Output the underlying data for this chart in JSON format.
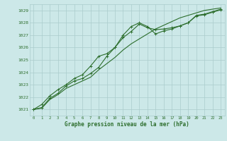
{
  "title": "Graphe pression niveau de la mer (hPa)",
  "background_color": "#cce8e8",
  "grid_color": "#aacccc",
  "line_color": "#2d6e2d",
  "xlim": [
    -0.5,
    23.5
  ],
  "ylim": [
    1020.5,
    1029.5
  ],
  "yticks": [
    1021,
    1022,
    1023,
    1024,
    1025,
    1026,
    1027,
    1028,
    1029
  ],
  "xticks": [
    0,
    1,
    2,
    3,
    4,
    5,
    6,
    7,
    8,
    9,
    10,
    11,
    12,
    13,
    14,
    15,
    16,
    17,
    18,
    19,
    20,
    21,
    22,
    23
  ],
  "series": [
    {
      "x": [
        0,
        1,
        2,
        3,
        4,
        5,
        6,
        7,
        8,
        9,
        10,
        11,
        12,
        13,
        14,
        15,
        16,
        17,
        18,
        19,
        20,
        21,
        22,
        23
      ],
      "y": [
        1021.0,
        1021.1,
        1021.8,
        1022.2,
        1022.7,
        1023.0,
        1023.3,
        1023.6,
        1024.2,
        1024.7,
        1025.2,
        1025.8,
        1026.3,
        1026.7,
        1027.1,
        1027.5,
        1027.8,
        1028.1,
        1028.4,
        1028.6,
        1028.8,
        1029.0,
        1029.1,
        1029.2
      ],
      "marker": null
    },
    {
      "x": [
        0,
        1,
        2,
        3,
        4,
        5,
        6,
        7,
        8,
        9,
        10,
        11,
        12,
        13,
        14,
        15,
        16,
        17,
        18,
        19,
        20,
        21,
        22,
        23
      ],
      "y": [
        1021.0,
        1021.15,
        1021.9,
        1022.3,
        1022.9,
        1023.3,
        1023.5,
        1023.9,
        1024.4,
        1025.3,
        1026.0,
        1027.0,
        1027.7,
        1028.0,
        1027.7,
        1027.1,
        1027.35,
        1027.5,
        1027.75,
        1028.0,
        1028.6,
        1028.7,
        1028.9,
        1029.1
      ],
      "marker": "+"
    },
    {
      "x": [
        0,
        1,
        2,
        3,
        4,
        5,
        6,
        7,
        8,
        9,
        10,
        11,
        12,
        13,
        14,
        15,
        16,
        17,
        18,
        19,
        20,
        21,
        22,
        23
      ],
      "y": [
        1021.0,
        1021.4,
        1022.1,
        1022.6,
        1023.0,
        1023.5,
        1023.8,
        1024.5,
        1025.3,
        1025.5,
        1026.0,
        1026.8,
        1027.3,
        1027.9,
        1027.6,
        1027.45,
        1027.5,
        1027.6,
        1027.75,
        1028.0,
        1028.55,
        1028.65,
        1028.85,
        1029.05
      ],
      "marker": "+"
    }
  ]
}
